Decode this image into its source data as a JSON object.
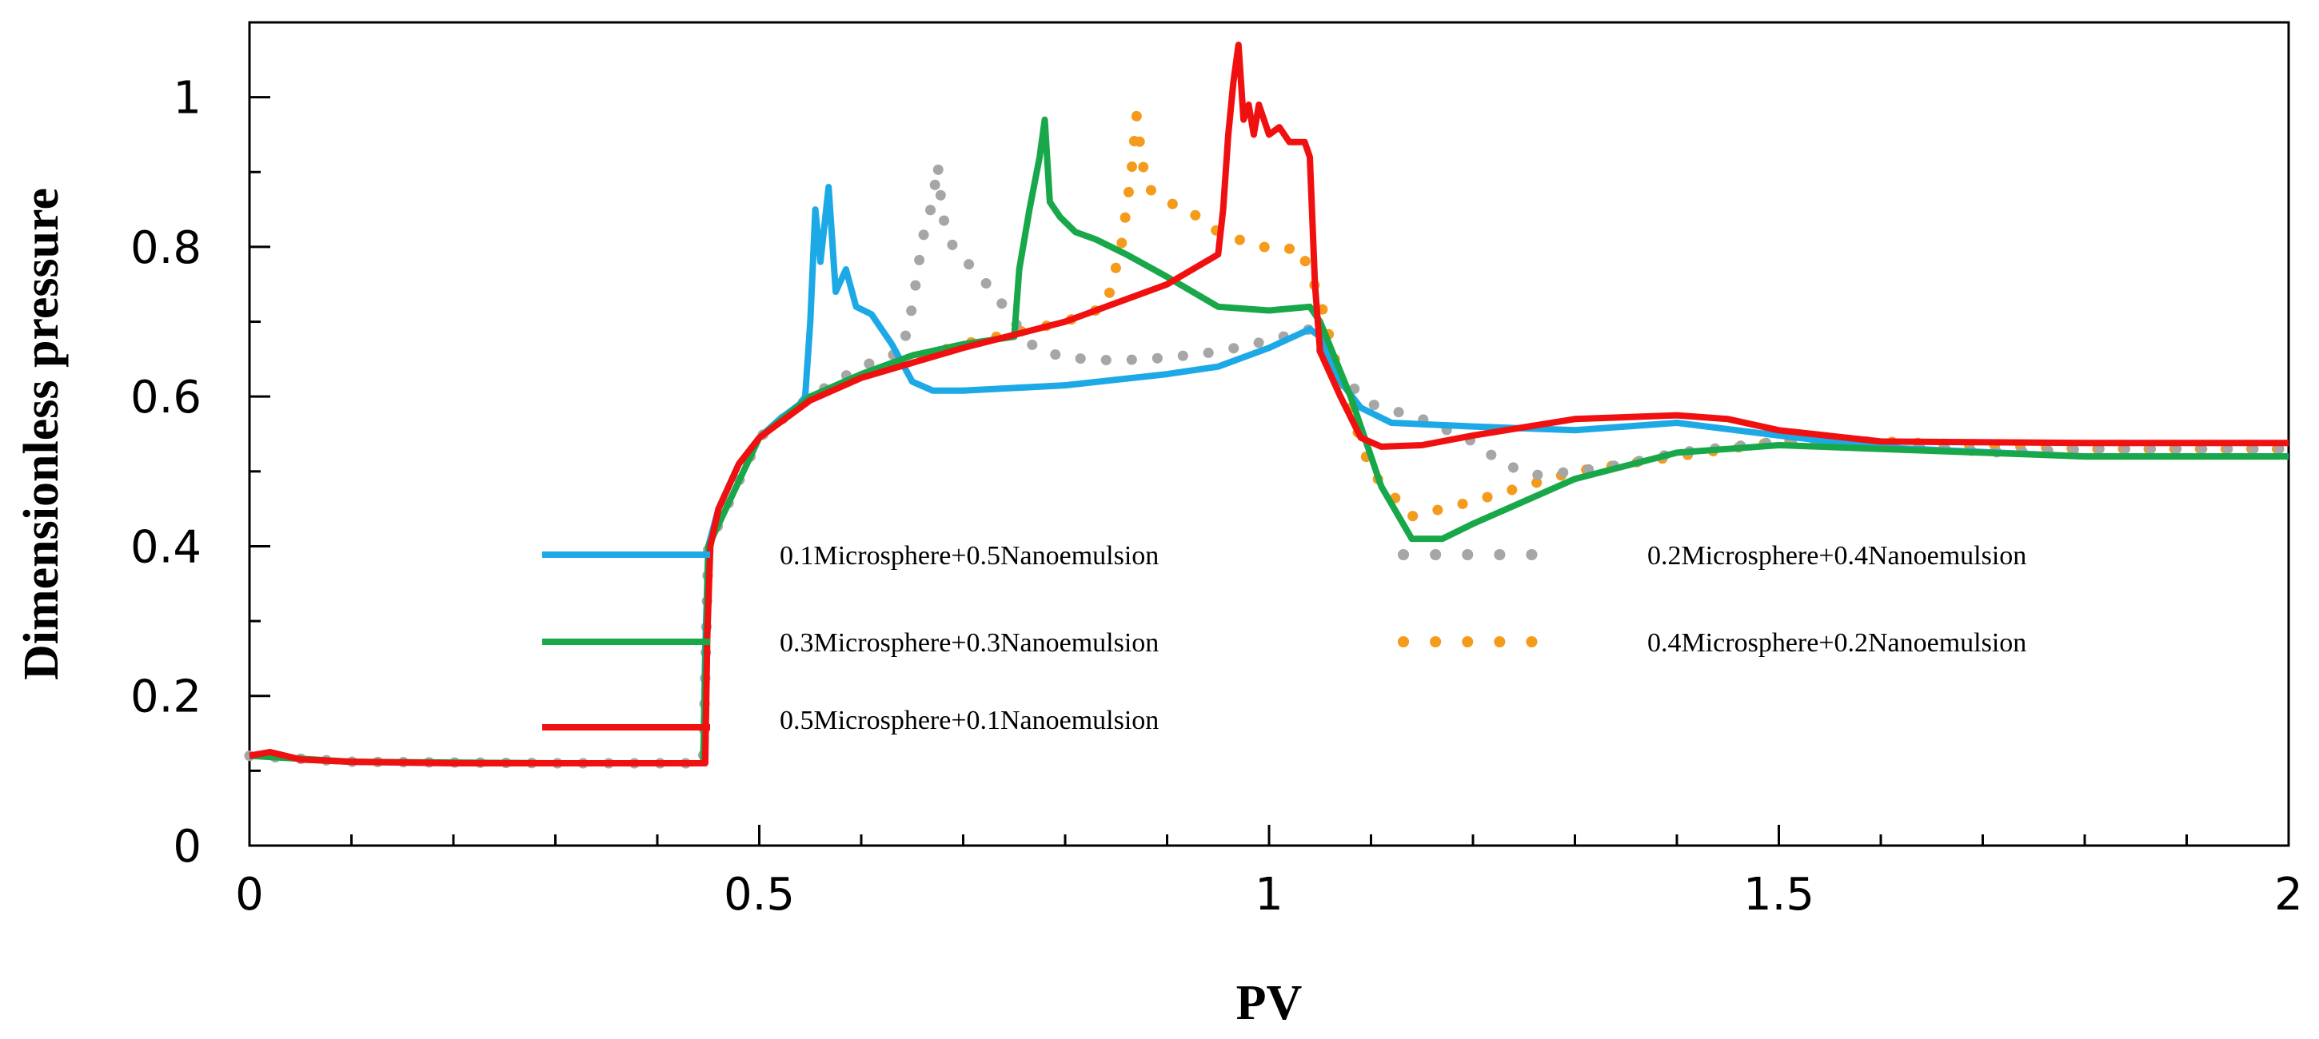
{
  "chart_data": {
    "type": "line",
    "title": "",
    "xlabel": "PV",
    "ylabel": "Dimensionless pressure",
    "xlim": [
      0,
      2
    ],
    "ylim": [
      0,
      1.1
    ],
    "x_ticks": [
      "0",
      "0.5",
      "1",
      "1.5",
      "2"
    ],
    "y_ticks": [
      "0",
      "0.2",
      "0.4",
      "0.6",
      "0.8",
      "1"
    ],
    "grid": false,
    "legend_position": "center",
    "series": [
      {
        "name": "0.1Microsphere+0.5Nanoemulsion",
        "style": "solid",
        "color": "#1CA9E6",
        "points": [
          [
            0,
            0.12
          ],
          [
            0.02,
            0.125
          ],
          [
            0.05,
            0.115
          ],
          [
            0.1,
            0.112
          ],
          [
            0.2,
            0.11
          ],
          [
            0.3,
            0.11
          ],
          [
            0.4,
            0.11
          ],
          [
            0.445,
            0.11
          ],
          [
            0.447,
            0.26
          ],
          [
            0.45,
            0.4
          ],
          [
            0.46,
            0.45
          ],
          [
            0.48,
            0.51
          ],
          [
            0.5,
            0.545
          ],
          [
            0.52,
            0.57
          ],
          [
            0.54,
            0.59
          ],
          [
            0.545,
            0.6
          ],
          [
            0.55,
            0.7
          ],
          [
            0.555,
            0.85
          ],
          [
            0.56,
            0.78
          ],
          [
            0.568,
            0.88
          ],
          [
            0.575,
            0.74
          ],
          [
            0.585,
            0.77
          ],
          [
            0.595,
            0.72
          ],
          [
            0.61,
            0.71
          ],
          [
            0.63,
            0.67
          ],
          [
            0.65,
            0.62
          ],
          [
            0.67,
            0.608
          ],
          [
            0.7,
            0.608
          ],
          [
            0.8,
            0.615
          ],
          [
            0.9,
            0.63
          ],
          [
            0.95,
            0.64
          ],
          [
            1.0,
            0.665
          ],
          [
            1.04,
            0.69
          ],
          [
            1.05,
            0.68
          ],
          [
            1.07,
            0.62
          ],
          [
            1.09,
            0.585
          ],
          [
            1.12,
            0.565
          ],
          [
            1.2,
            0.56
          ],
          [
            1.3,
            0.555
          ],
          [
            1.4,
            0.565
          ],
          [
            1.5,
            0.548
          ],
          [
            1.6,
            0.532
          ],
          [
            1.8,
            0.52
          ],
          [
            2.0,
            0.52
          ]
        ]
      },
      {
        "name": "0.2Microsphere+0.4Nanoemulsion",
        "style": "dotted",
        "color": "#A6A6A6",
        "points": [
          [
            0,
            0.12
          ],
          [
            0.1,
            0.112
          ],
          [
            0.3,
            0.11
          ],
          [
            0.445,
            0.11
          ],
          [
            0.45,
            0.4
          ],
          [
            0.5,
            0.545
          ],
          [
            0.55,
            0.6
          ],
          [
            0.6,
            0.64
          ],
          [
            0.64,
            0.66
          ],
          [
            0.65,
            0.72
          ],
          [
            0.66,
            0.81
          ],
          [
            0.67,
            0.86
          ],
          [
            0.675,
            0.91
          ],
          [
            0.68,
            0.84
          ],
          [
            0.69,
            0.8
          ],
          [
            0.71,
            0.77
          ],
          [
            0.73,
            0.74
          ],
          [
            0.75,
            0.7
          ],
          [
            0.77,
            0.665
          ],
          [
            0.8,
            0.652
          ],
          [
            0.85,
            0.648
          ],
          [
            0.9,
            0.652
          ],
          [
            0.95,
            0.66
          ],
          [
            1.0,
            0.675
          ],
          [
            1.04,
            0.69
          ],
          [
            1.06,
            0.64
          ],
          [
            1.1,
            0.59
          ],
          [
            1.15,
            0.57
          ],
          [
            1.2,
            0.54
          ],
          [
            1.23,
            0.51
          ],
          [
            1.26,
            0.495
          ],
          [
            1.3,
            0.5
          ],
          [
            1.35,
            0.51
          ],
          [
            1.4,
            0.525
          ],
          [
            1.5,
            0.54
          ],
          [
            1.6,
            0.535
          ],
          [
            1.72,
            0.525
          ],
          [
            1.8,
            0.53
          ],
          [
            2.0,
            0.53
          ]
        ]
      },
      {
        "name": "0.3Microsphere+0.3Nanoemulsion",
        "style": "solid",
        "color": "#18A84A",
        "points": [
          [
            0,
            0.12
          ],
          [
            0.1,
            0.112
          ],
          [
            0.3,
            0.11
          ],
          [
            0.445,
            0.11
          ],
          [
            0.45,
            0.4
          ],
          [
            0.5,
            0.545
          ],
          [
            0.55,
            0.6
          ],
          [
            0.6,
            0.63
          ],
          [
            0.65,
            0.655
          ],
          [
            0.7,
            0.67
          ],
          [
            0.75,
            0.68
          ],
          [
            0.755,
            0.77
          ],
          [
            0.765,
            0.85
          ],
          [
            0.775,
            0.92
          ],
          [
            0.78,
            0.97
          ],
          [
            0.785,
            0.86
          ],
          [
            0.795,
            0.84
          ],
          [
            0.81,
            0.82
          ],
          [
            0.83,
            0.81
          ],
          [
            0.86,
            0.79
          ],
          [
            0.9,
            0.76
          ],
          [
            0.95,
            0.72
          ],
          [
            1.0,
            0.715
          ],
          [
            1.04,
            0.72
          ],
          [
            1.05,
            0.7
          ],
          [
            1.08,
            0.6
          ],
          [
            1.11,
            0.48
          ],
          [
            1.14,
            0.41
          ],
          [
            1.17,
            0.41
          ],
          [
            1.2,
            0.43
          ],
          [
            1.25,
            0.46
          ],
          [
            1.3,
            0.49
          ],
          [
            1.4,
            0.525
          ],
          [
            1.5,
            0.535
          ],
          [
            1.6,
            0.53
          ],
          [
            1.8,
            0.52
          ],
          [
            2.0,
            0.52
          ]
        ]
      },
      {
        "name": "0.4Microsphere+0.2Nanoemulsion",
        "style": "dotted",
        "color": "#F59B1C",
        "points": [
          [
            0,
            0.12
          ],
          [
            0.1,
            0.112
          ],
          [
            0.3,
            0.11
          ],
          [
            0.445,
            0.11
          ],
          [
            0.45,
            0.4
          ],
          [
            0.5,
            0.545
          ],
          [
            0.55,
            0.6
          ],
          [
            0.6,
            0.63
          ],
          [
            0.7,
            0.67
          ],
          [
            0.8,
            0.7
          ],
          [
            0.84,
            0.72
          ],
          [
            0.855,
            0.8
          ],
          [
            0.865,
            0.9
          ],
          [
            0.87,
            0.975
          ],
          [
            0.875,
            0.92
          ],
          [
            0.88,
            0.88
          ],
          [
            0.89,
            0.87
          ],
          [
            0.9,
            0.86
          ],
          [
            0.92,
            0.85
          ],
          [
            0.95,
            0.82
          ],
          [
            0.98,
            0.805
          ],
          [
            1.01,
            0.795
          ],
          [
            1.03,
            0.8
          ],
          [
            1.05,
            0.73
          ],
          [
            1.07,
            0.62
          ],
          [
            1.1,
            0.5
          ],
          [
            1.14,
            0.44
          ],
          [
            1.2,
            0.46
          ],
          [
            1.3,
            0.5
          ],
          [
            1.4,
            0.52
          ],
          [
            1.5,
            0.54
          ],
          [
            1.6,
            0.54
          ],
          [
            1.8,
            0.53
          ],
          [
            2.0,
            0.53
          ]
        ]
      },
      {
        "name": "0.5Microsphere+0.1Nanoemulsion",
        "style": "solid",
        "color": "#F01010",
        "points": [
          [
            0,
            0.12
          ],
          [
            0.02,
            0.125
          ],
          [
            0.05,
            0.115
          ],
          [
            0.1,
            0.112
          ],
          [
            0.2,
            0.11
          ],
          [
            0.3,
            0.11
          ],
          [
            0.4,
            0.11
          ],
          [
            0.447,
            0.11
          ],
          [
            0.449,
            0.28
          ],
          [
            0.452,
            0.4
          ],
          [
            0.46,
            0.45
          ],
          [
            0.48,
            0.51
          ],
          [
            0.5,
            0.545
          ],
          [
            0.55,
            0.595
          ],
          [
            0.6,
            0.625
          ],
          [
            0.7,
            0.665
          ],
          [
            0.8,
            0.7
          ],
          [
            0.9,
            0.75
          ],
          [
            0.95,
            0.79
          ],
          [
            0.955,
            0.85
          ],
          [
            0.96,
            0.95
          ],
          [
            0.965,
            1.02
          ],
          [
            0.97,
            1.07
          ],
          [
            0.975,
            0.97
          ],
          [
            0.98,
            0.99
          ],
          [
            0.985,
            0.95
          ],
          [
            0.99,
            0.99
          ],
          [
            1.0,
            0.95
          ],
          [
            1.01,
            0.96
          ],
          [
            1.02,
            0.94
          ],
          [
            1.035,
            0.94
          ],
          [
            1.04,
            0.92
          ],
          [
            1.045,
            0.75
          ],
          [
            1.05,
            0.66
          ],
          [
            1.07,
            0.6
          ],
          [
            1.09,
            0.545
          ],
          [
            1.11,
            0.533
          ],
          [
            1.15,
            0.535
          ],
          [
            1.2,
            0.548
          ],
          [
            1.3,
            0.57
          ],
          [
            1.4,
            0.575
          ],
          [
            1.45,
            0.57
          ],
          [
            1.5,
            0.555
          ],
          [
            1.6,
            0.54
          ],
          [
            1.8,
            0.538
          ],
          [
            2.0,
            0.538
          ]
        ]
      }
    ]
  }
}
